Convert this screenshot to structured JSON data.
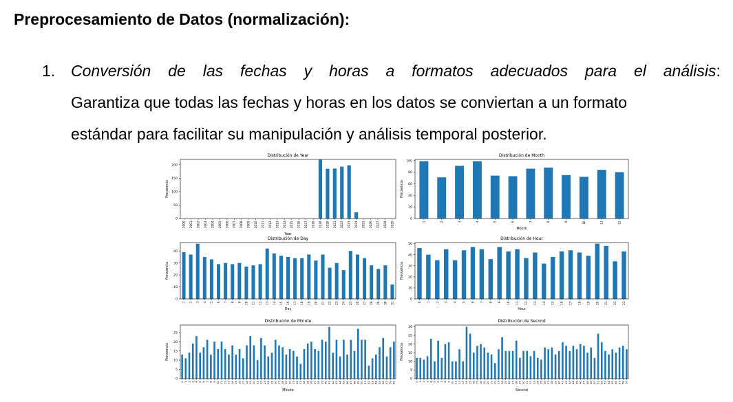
{
  "heading": "Preprocesamiento de Datos (normalización):",
  "list_item": {
    "number": "1.",
    "title_words": [
      "Conversión",
      "de",
      "las",
      "fechas",
      "y",
      "horas",
      "a",
      "formatos",
      "adecuados",
      "para",
      "el",
      "análisis"
    ],
    "colon": ":",
    "line2": "Garantiza que todas las fechas y horas en los datos se conviertan a un formato",
    "line3": "estándar para facilitar su manipulación y análisis temporal posterior."
  },
  "bar_color": "#1f77b4",
  "chart_data": [
    {
      "type": "bar",
      "title": "Distribución de Year",
      "xlabel": "Year",
      "ylabel": "Frecuencia",
      "ylim": [
        0,
        220
      ],
      "yticks": [
        0,
        50,
        100,
        150,
        200
      ],
      "categories": [
        "2000",
        "2001",
        "2002",
        "2003",
        "2004",
        "2005",
        "2006",
        "2007",
        "2008",
        "2009",
        "2010",
        "2011",
        "2012",
        "2013",
        "2014",
        "2015",
        "2016",
        "2017",
        "2018",
        "2019",
        "2020",
        "2021",
        "2022",
        "2023",
        "2024",
        "2025",
        "2026",
        "2027",
        "2028",
        "2029"
      ],
      "values": [
        0,
        0,
        0,
        0,
        0,
        0,
        0,
        0,
        0,
        0,
        0,
        0,
        0,
        0,
        0,
        0,
        0,
        0,
        0,
        219,
        185,
        186,
        193,
        198,
        23,
        0,
        0,
        0,
        0,
        0
      ]
    },
    {
      "type": "bar",
      "title": "Distribución de Month",
      "xlabel": "Month",
      "ylabel": "Frecuencia",
      "ylim": [
        0,
        102
      ],
      "yticks": [
        0,
        20,
        40,
        60,
        80,
        100
      ],
      "categories": [
        "1",
        "2",
        "3",
        "4",
        "5",
        "6",
        "7",
        "8",
        "9",
        "10",
        "11",
        "12"
      ],
      "values": [
        99,
        71,
        91,
        99,
        74,
        73,
        86,
        88,
        75,
        72,
        84,
        80
      ]
    },
    {
      "type": "bar",
      "title": "Distribución de Day",
      "xlabel": "Day",
      "ylabel": "Frecuencia",
      "ylim": [
        0,
        47
      ],
      "yticks": [
        0,
        10,
        20,
        30,
        40
      ],
      "categories": [
        "1",
        "2",
        "3",
        "4",
        "5",
        "6",
        "7",
        "8",
        "9",
        "10",
        "11",
        "12",
        "13",
        "14",
        "15",
        "16",
        "17",
        "18",
        "19",
        "20",
        "21",
        "22",
        "23",
        "24",
        "25",
        "26",
        "27",
        "28",
        "29",
        "30",
        "31"
      ],
      "values": [
        39,
        37,
        46,
        35,
        33,
        29,
        30,
        29,
        30,
        27,
        28,
        29,
        42,
        38,
        36,
        35,
        34,
        34,
        37,
        32,
        37,
        26,
        30,
        24,
        40,
        37,
        34,
        28,
        25,
        28,
        12
      ]
    },
    {
      "type": "bar",
      "title": "Distribución de Hour",
      "xlabel": "Hour",
      "ylabel": "Frecuencia",
      "ylim": [
        0,
        51
      ],
      "yticks": [
        0,
        10,
        20,
        30,
        40,
        50
      ],
      "categories": [
        "0",
        "1",
        "2",
        "3",
        "4",
        "5",
        "6",
        "7",
        "8",
        "9",
        "10",
        "11",
        "12",
        "13",
        "14",
        "15",
        "16",
        "17",
        "18",
        "19",
        "20",
        "21",
        "22",
        "23"
      ],
      "values": [
        46,
        40,
        35,
        45,
        35,
        44,
        47,
        45,
        36,
        47,
        43,
        45,
        37,
        42,
        32,
        38,
        43,
        44,
        42,
        39,
        50,
        48,
        34,
        43
      ]
    },
    {
      "type": "bar",
      "title": "Distribución de Minute",
      "xlabel": "Minute",
      "ylabel": "Frecuencia",
      "ylim": [
        0,
        29
      ],
      "yticks": [
        0,
        5,
        10,
        15,
        20,
        25
      ],
      "categories": [
        "0",
        "1",
        "2",
        "3",
        "4",
        "5",
        "6",
        "7",
        "8",
        "9",
        "10",
        "11",
        "12",
        "13",
        "14",
        "15",
        "16",
        "17",
        "18",
        "19",
        "20",
        "21",
        "22",
        "23",
        "24",
        "25",
        "26",
        "27",
        "28",
        "29",
        "30",
        "31",
        "32",
        "33",
        "34",
        "35",
        "36",
        "37",
        "38",
        "39",
        "40",
        "41",
        "42",
        "43",
        "44",
        "45",
        "46",
        "47",
        "48",
        "49",
        "50",
        "51",
        "52",
        "53",
        "54",
        "55",
        "56",
        "57",
        "58",
        "59"
      ],
      "values": [
        13,
        11,
        14,
        19,
        23,
        14,
        17,
        21,
        13,
        20,
        16,
        20,
        16,
        13,
        18,
        13,
        16,
        11,
        18,
        23,
        18,
        10,
        22,
        18,
        12,
        14,
        21,
        18,
        17,
        13,
        16,
        15,
        12,
        8,
        16,
        19,
        20,
        16,
        15,
        21,
        20,
        28,
        14,
        21,
        12,
        21,
        13,
        21,
        15,
        27,
        21,
        21,
        7,
        11,
        13,
        17,
        22,
        12,
        17,
        20
      ]
    },
    {
      "type": "bar",
      "title": "Distribución de Second",
      "xlabel": "Second",
      "ylabel": "Frecuencia",
      "ylim": [
        0,
        31
      ],
      "yticks": [
        0,
        5,
        10,
        15,
        20,
        25,
        30
      ],
      "categories": [
        "0",
        "1",
        "2",
        "3",
        "4",
        "5",
        "6",
        "7",
        "8",
        "9",
        "10",
        "11",
        "12",
        "13",
        "14",
        "15",
        "16",
        "17",
        "18",
        "19",
        "20",
        "21",
        "22",
        "23",
        "24",
        "25",
        "26",
        "27",
        "28",
        "29",
        "30",
        "31",
        "32",
        "33",
        "34",
        "35",
        "36",
        "37",
        "38",
        "39",
        "40",
        "41",
        "42",
        "43",
        "44",
        "45",
        "46",
        "47",
        "48",
        "49",
        "50",
        "51",
        "52",
        "53",
        "54",
        "55",
        "56",
        "57",
        "58",
        "59"
      ],
      "values": [
        12,
        12,
        11,
        13,
        23,
        10,
        22,
        12,
        20,
        21,
        10,
        10,
        17,
        10,
        30,
        26,
        15,
        19,
        20,
        18,
        15,
        14,
        9,
        17,
        24,
        16,
        16,
        16,
        22,
        12,
        16,
        16,
        13,
        16,
        12,
        11,
        18,
        17,
        18,
        14,
        16,
        21,
        19,
        16,
        19,
        17,
        20,
        19,
        15,
        18,
        12,
        26,
        21,
        16,
        14,
        17,
        15,
        18,
        19,
        17
      ]
    }
  ]
}
